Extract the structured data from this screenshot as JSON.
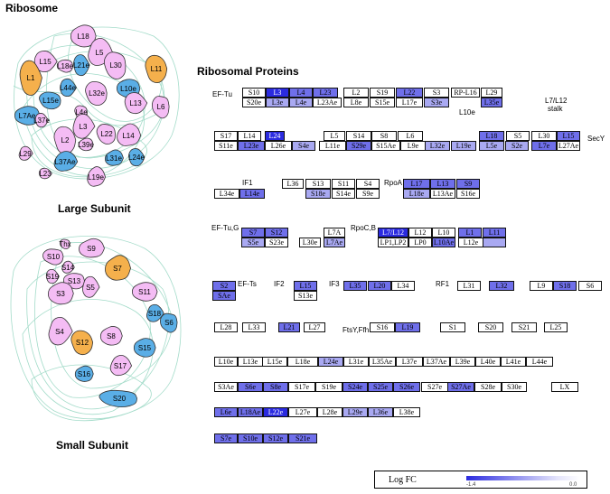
{
  "title_ribosome": "Ribosome",
  "title_large": "Large Subunit",
  "title_small": "Small Subunit",
  "title_proteins": "Ribosomal Proteins",
  "colors": {
    "pink": "#f4bcf4",
    "blue": "#5aaee6",
    "orange": "#f5b04c",
    "thread": "#9ad8c4",
    "strong": "#2b2be0",
    "mid": "#6f6fea",
    "light": "#a9a9f2"
  },
  "large_subunit_labels": [
    "L18",
    "L5",
    "L15",
    "L18e",
    "L21e",
    "L30",
    "L11",
    "L1",
    "L44e",
    "L32e",
    "L10e",
    "L15e",
    "L4e",
    "L13",
    "L6",
    "L7Ae",
    "L37e",
    "L3",
    "L22",
    "L14",
    "L2",
    "L39e",
    "L31e",
    "L24e",
    "L29",
    "L37Ae",
    "L23",
    "L19e"
  ],
  "small_subunit_labels": [
    "Thx",
    "S9",
    "S10",
    "S14",
    "S19",
    "S7",
    "S13",
    "S3",
    "S5",
    "S11",
    "S4",
    "S18",
    "S6",
    "S12",
    "S8",
    "S15",
    "S17",
    "S16",
    "S20"
  ],
  "annotations": [
    "EF-Tu",
    "L10e",
    "L7/L12",
    "stalk",
    "SecY",
    "IF1",
    "RpoA",
    "EF-Tu,G",
    "RpoC,B",
    "EF-Ts",
    "IF2",
    "IF3",
    "RF1",
    "FtsY,Ffh"
  ],
  "legend": {
    "title": "Log FC",
    "min": "-1.4",
    "max": "0.0"
  },
  "rows": [
    [
      "S10",
      "L3",
      "L4",
      "L23",
      "L2",
      "S19",
      "L22",
      "S3",
      "RP-L16",
      "L29"
    ],
    [
      "S20e",
      "L3e",
      "L4e",
      "L23Ae",
      "L8e",
      "S15e",
      "L17e",
      "S3e",
      "L35e"
    ],
    [
      "S17",
      "L14",
      "L24",
      "L5",
      "S14",
      "S8",
      "L6",
      "L18",
      "S5",
      "L30",
      "L15"
    ],
    [
      "S11e",
      "L23e",
      "L26e",
      "S4e",
      "L11e",
      "S29e",
      "S15Ae",
      "L9e",
      "L32e",
      "L19e",
      "L5e",
      "S2e",
      "L7e",
      "L27Ae"
    ],
    [
      "L36",
      "S13",
      "S11",
      "S4",
      "L17",
      "L13",
      "S9"
    ],
    [
      "L34e",
      "L14e",
      "S18e",
      "S14e",
      "S9e",
      "L18e",
      "L13Ae",
      "S16e"
    ],
    [
      "S7",
      "S12",
      "L7A",
      "L7/L12",
      "L12",
      "L10",
      "L1",
      "L11"
    ],
    [
      "S5e",
      "S23e",
      "L30e",
      "L7Ae",
      "LP1,LP2",
      "LP0",
      "L10Ae",
      "L12e"
    ],
    [
      "S2",
      "L15",
      "L35",
      "L20",
      "L34",
      "L31",
      "L32",
      "L9",
      "S18",
      "S6"
    ],
    [
      "SAe",
      "S13e"
    ],
    [
      "L28",
      "L33",
      "L21",
      "L27",
      "S16",
      "L19",
      "S1",
      "S20",
      "S21",
      "L25"
    ],
    [
      "L10e",
      "L13e",
      "L15e",
      "L18e",
      "L24e",
      "L31e",
      "L35Ae",
      "L37e",
      "L37Ae",
      "L39e",
      "L40e",
      "L41e",
      "L44e"
    ],
    [
      "S3Ae",
      "S6e",
      "S8e",
      "S17e",
      "S19e",
      "S24e",
      "S25e",
      "S26e",
      "S27e",
      "S27Ae",
      "S28e",
      "S30e",
      "LX"
    ],
    [
      "L6e",
      "L18Ae",
      "L22e",
      "L27e",
      "L28e",
      "L29e",
      "L36e",
      "L38e"
    ],
    [
      "S7e",
      "S10e",
      "S12e",
      "S21e"
    ]
  ]
}
